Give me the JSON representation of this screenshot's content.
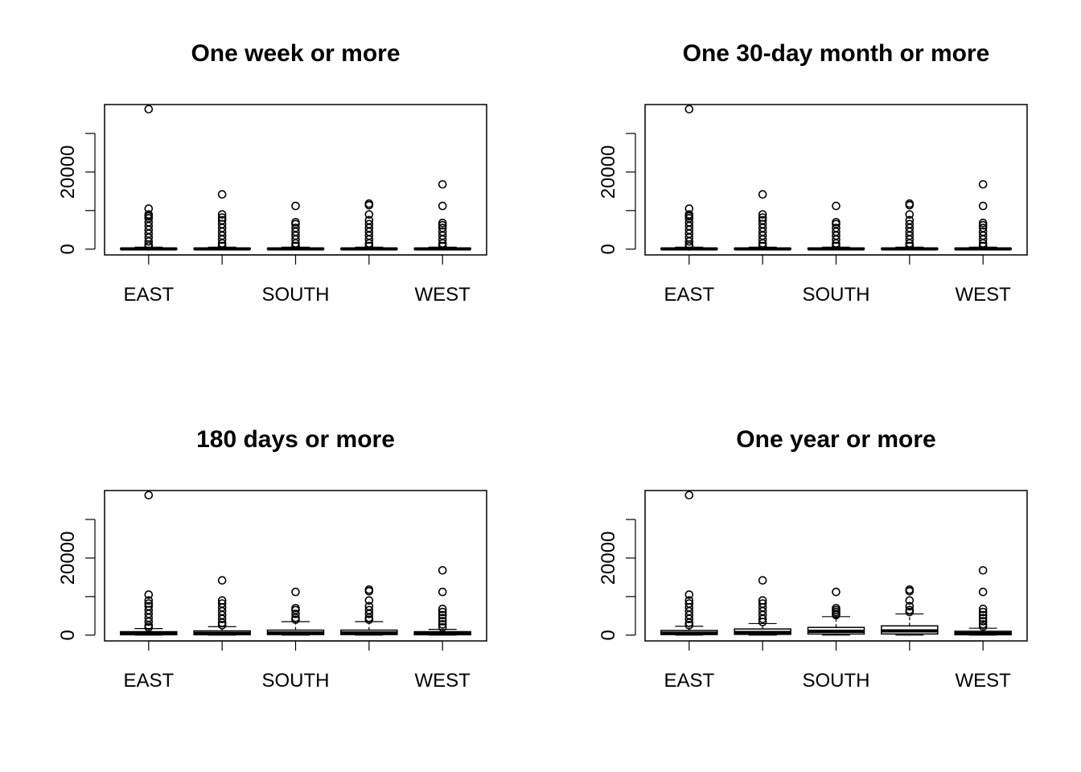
{
  "chart_data": [
    {
      "type": "boxplot",
      "title": "One week or more",
      "categories": [
        "EAST",
        "",
        "SOUTH",
        "",
        "WEST"
      ],
      "y_ticks": [
        0,
        10000,
        20000,
        30000
      ],
      "y_tick_labels": [
        "0",
        "",
        "20000",
        ""
      ],
      "ylim": [
        -1500,
        37500
      ],
      "boxes": [
        {
          "q1": 0,
          "median": 60,
          "q3": 220,
          "whisker_low": 0,
          "whisker_high": 500,
          "outliers": [
            36300,
            10500,
            9000,
            8500,
            8000,
            7000,
            6000,
            5000,
            4000,
            3000,
            2000,
            1200,
            700
          ]
        },
        {
          "q1": 0,
          "median": 60,
          "q3": 220,
          "whisker_low": 0,
          "whisker_high": 500,
          "outliers": [
            14200,
            9000,
            8200,
            7500,
            6500,
            5500,
            4500,
            3500,
            2500,
            1500,
            800
          ]
        },
        {
          "q1": 0,
          "median": 60,
          "q3": 220,
          "whisker_low": 0,
          "whisker_high": 500,
          "outliers": [
            11200,
            7000,
            6500,
            5500,
            4500,
            3500,
            2500,
            1500,
            800
          ]
        },
        {
          "q1": 0,
          "median": 60,
          "q3": 220,
          "whisker_low": 0,
          "whisker_high": 500,
          "outliers": [
            11800,
            11400,
            9000,
            7500,
            6500,
            5500,
            4500,
            3500,
            2500,
            1500,
            800
          ]
        },
        {
          "q1": 0,
          "median": 60,
          "q3": 220,
          "whisker_low": 0,
          "whisker_high": 500,
          "outliers": [
            16800,
            11200,
            6800,
            6200,
            5500,
            4500,
            3500,
            2500,
            1500,
            800
          ]
        }
      ]
    },
    {
      "type": "boxplot",
      "title": "One 30-day month or more",
      "categories": [
        "EAST",
        "",
        "SOUTH",
        "",
        "WEST"
      ],
      "y_ticks": [
        0,
        10000,
        20000,
        30000
      ],
      "y_tick_labels": [
        "0",
        "",
        "20000",
        ""
      ],
      "ylim": [
        -1500,
        37500
      ],
      "boxes": [
        {
          "q1": 0,
          "median": 60,
          "q3": 220,
          "whisker_low": 0,
          "whisker_high": 500,
          "outliers": [
            36300,
            10500,
            9000,
            8500,
            8000,
            7000,
            6000,
            5000,
            4000,
            3000,
            2000,
            1200,
            700
          ]
        },
        {
          "q1": 0,
          "median": 60,
          "q3": 220,
          "whisker_low": 0,
          "whisker_high": 500,
          "outliers": [
            14200,
            9000,
            8200,
            7500,
            6500,
            5500,
            4500,
            3500,
            2500,
            1500,
            800
          ]
        },
        {
          "q1": 0,
          "median": 60,
          "q3": 220,
          "whisker_low": 0,
          "whisker_high": 500,
          "outliers": [
            11200,
            7000,
            6500,
            5500,
            4500,
            3500,
            2500,
            1500,
            800
          ]
        },
        {
          "q1": 0,
          "median": 60,
          "q3": 220,
          "whisker_low": 0,
          "whisker_high": 500,
          "outliers": [
            11800,
            11400,
            9000,
            7500,
            6500,
            5500,
            4500,
            3500,
            2500,
            1500,
            800
          ]
        },
        {
          "q1": 0,
          "median": 60,
          "q3": 220,
          "whisker_low": 0,
          "whisker_high": 500,
          "outliers": [
            16800,
            11200,
            6800,
            6200,
            5500,
            4500,
            3500,
            2500,
            1500,
            800
          ]
        }
      ]
    },
    {
      "type": "boxplot",
      "title": "180 days or more",
      "categories": [
        "EAST",
        "",
        "SOUTH",
        "",
        "WEST"
      ],
      "y_ticks": [
        0,
        10000,
        20000,
        30000
      ],
      "y_tick_labels": [
        "0",
        "",
        "20000",
        ""
      ],
      "ylim": [
        -1500,
        37500
      ],
      "boxes": [
        {
          "q1": 100,
          "median": 400,
          "q3": 900,
          "whisker_low": 0,
          "whisker_high": 1700,
          "outliers": [
            36300,
            10500,
            9000,
            8200,
            7500,
            6500,
            5500,
            4500,
            3500,
            2500,
            2000
          ]
        },
        {
          "q1": 100,
          "median": 450,
          "q3": 1100,
          "whisker_low": 0,
          "whisker_high": 2200,
          "outliers": [
            14200,
            9000,
            8200,
            7200,
            6200,
            5200,
            4200,
            3200,
            2600
          ]
        },
        {
          "q1": 150,
          "median": 550,
          "q3": 1300,
          "whisker_low": 0,
          "whisker_high": 3500,
          "outliers": [
            11200,
            7000,
            6500,
            5500,
            4500,
            4000
          ]
        },
        {
          "q1": 150,
          "median": 550,
          "q3": 1300,
          "whisker_low": 0,
          "whisker_high": 3500,
          "outliers": [
            11800,
            11400,
            9000,
            7500,
            6500,
            5500,
            4500,
            4000
          ]
        },
        {
          "q1": 100,
          "median": 400,
          "q3": 900,
          "whisker_low": 0,
          "whisker_high": 1500,
          "outliers": [
            16800,
            11200,
            6800,
            6000,
            5200,
            4400,
            3600,
            2800,
            2000
          ]
        }
      ]
    },
    {
      "type": "boxplot",
      "title": "One year or more",
      "categories": [
        "EAST",
        "",
        "SOUTH",
        "",
        "WEST"
      ],
      "y_ticks": [
        0,
        10000,
        20000,
        30000
      ],
      "y_tick_labels": [
        "0",
        "",
        "20000",
        ""
      ],
      "ylim": [
        -1500,
        37500
      ],
      "boxes": [
        {
          "q1": 150,
          "median": 500,
          "q3": 1200,
          "whisker_low": 0,
          "whisker_high": 2300,
          "outliers": [
            36300,
            10500,
            9000,
            8200,
            7200,
            6200,
            5200,
            4200,
            3200,
            2600
          ]
        },
        {
          "q1": 200,
          "median": 700,
          "q3": 1600,
          "whisker_low": 0,
          "whisker_high": 3000,
          "outliers": [
            14200,
            9000,
            8200,
            7200,
            6200,
            5200,
            4200,
            3400
          ]
        },
        {
          "q1": 300,
          "median": 1000,
          "q3": 2000,
          "whisker_low": 0,
          "whisker_high": 4800,
          "outliers": [
            11200,
            7000,
            6500,
            6000,
            5500,
            5200
          ]
        },
        {
          "q1": 300,
          "median": 1100,
          "q3": 2400,
          "whisker_low": 0,
          "whisker_high": 5500,
          "outliers": [
            11800,
            11400,
            9000,
            7500,
            6500,
            6000
          ]
        },
        {
          "q1": 100,
          "median": 450,
          "q3": 1000,
          "whisker_low": 0,
          "whisker_high": 1800,
          "outliers": [
            16800,
            11200,
            6800,
            6000,
            5200,
            4400,
            3600,
            2800,
            2200
          ]
        }
      ]
    }
  ]
}
